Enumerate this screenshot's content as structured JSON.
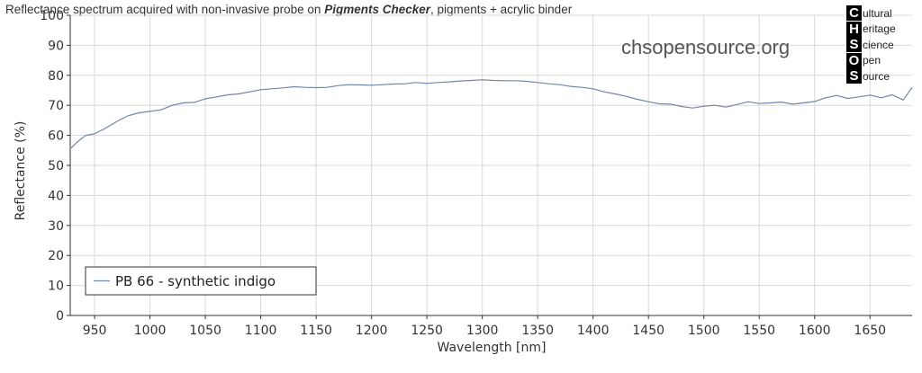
{
  "title": {
    "prefix": "Reflectance spectrum acquired with non-invasive probe on ",
    "emphasis": "Pigments Checker",
    "suffix": ", pigments + acrylic binder"
  },
  "watermark": "chsopensource.org",
  "logo": {
    "rows": [
      {
        "letter": "C",
        "word": "ultural"
      },
      {
        "letter": "H",
        "word": "eritage"
      },
      {
        "letter": "S",
        "word": "cience"
      },
      {
        "letter": "O",
        "word": "pen"
      },
      {
        "letter": "S",
        "word": "ource"
      }
    ]
  },
  "colors": {
    "series": "#7086a8",
    "grid": "#d9d9d9",
    "axis": "#333333"
  },
  "chart_data": {
    "type": "line",
    "xlabel": "Wavelength [nm]",
    "ylabel": "Reflectance (%)",
    "xlim": [
      928,
      1688
    ],
    "ylim": [
      0,
      100
    ],
    "x_ticks": [
      950,
      1000,
      1050,
      1100,
      1150,
      1200,
      1250,
      1300,
      1350,
      1400,
      1450,
      1500,
      1550,
      1600,
      1650
    ],
    "y_ticks": [
      0,
      10,
      20,
      30,
      40,
      50,
      60,
      70,
      80,
      90,
      100
    ],
    "grid": true,
    "legend_position": "bottom-left",
    "series": [
      {
        "name": "PB 66 - synthetic indigo",
        "x": [
          928,
          935,
          942,
          950,
          958,
          965,
          972,
          980,
          990,
          1000,
          1010,
          1020,
          1030,
          1040,
          1050,
          1060,
          1070,
          1080,
          1090,
          1100,
          1110,
          1120,
          1130,
          1140,
          1150,
          1160,
          1170,
          1180,
          1190,
          1200,
          1210,
          1220,
          1230,
          1240,
          1250,
          1260,
          1270,
          1280,
          1290,
          1300,
          1310,
          1320,
          1330,
          1340,
          1350,
          1360,
          1370,
          1380,
          1390,
          1400,
          1410,
          1420,
          1430,
          1440,
          1450,
          1460,
          1470,
          1480,
          1490,
          1500,
          1510,
          1520,
          1530,
          1540,
          1550,
          1560,
          1570,
          1580,
          1590,
          1600,
          1610,
          1620,
          1630,
          1640,
          1650,
          1660,
          1670,
          1680,
          1688
        ],
        "values": [
          55.5,
          58,
          60,
          60.5,
          62,
          63.5,
          65,
          66.5,
          67.5,
          68,
          68.5,
          70,
          70.8,
          71,
          72.2,
          72.8,
          73.5,
          73.8,
          74.5,
          75.2,
          75.5,
          75.8,
          76.2,
          76,
          75.9,
          76,
          76.6,
          76.9,
          76.8,
          76.7,
          76.9,
          77.1,
          77.2,
          77.6,
          77.3,
          77.6,
          77.8,
          78.1,
          78.3,
          78.5,
          78.3,
          78.2,
          78.2,
          78,
          77.6,
          77.2,
          76.9,
          76.3,
          76,
          75.5,
          74.5,
          73.8,
          73,
          72,
          71.2,
          70.5,
          70.4,
          69.6,
          69.1,
          69.7,
          70,
          69.4,
          70.3,
          71.2,
          70.6,
          70.8,
          71.1,
          70.4,
          70.8,
          71.3,
          72.5,
          73.3,
          72.3,
          72.8,
          73.4,
          72.5,
          73.5,
          71.8,
          76
        ]
      }
    ]
  }
}
